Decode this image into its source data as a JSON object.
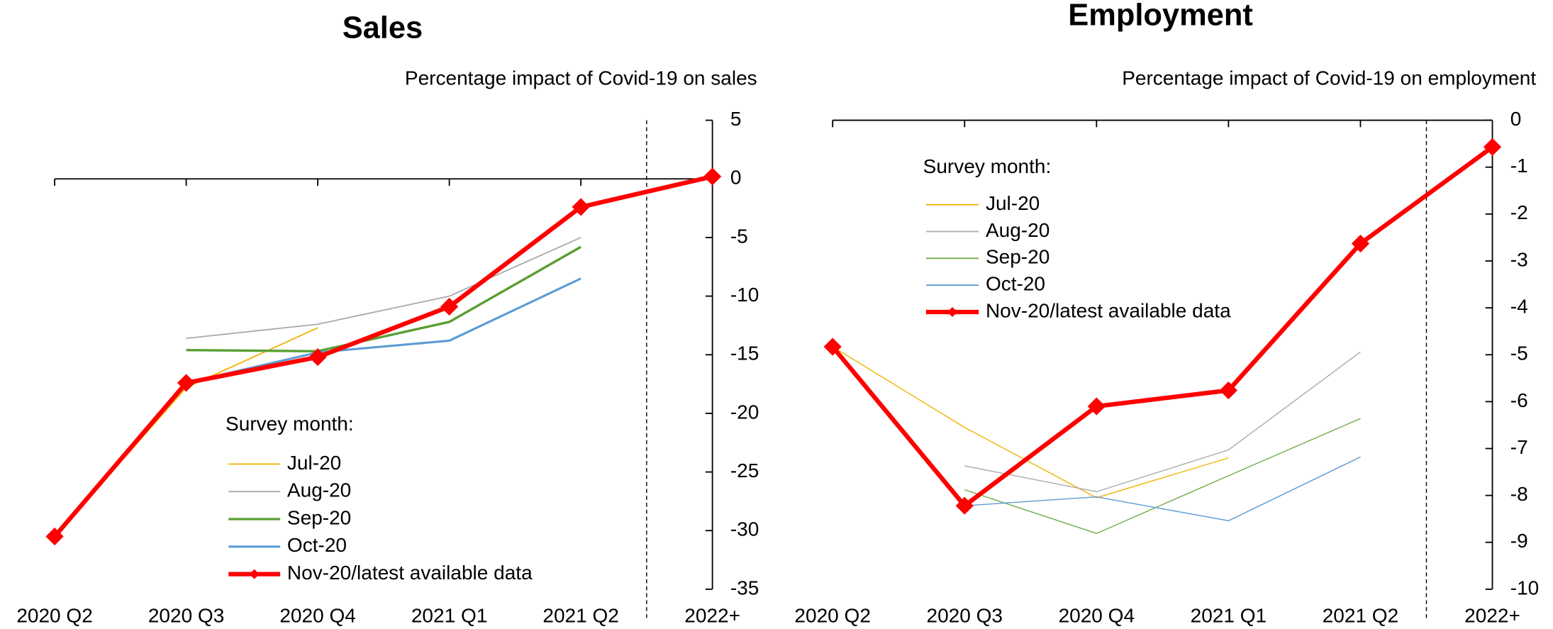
{
  "chart_data": [
    {
      "type": "line",
      "title": "Sales",
      "subtitle": "Percentage impact of Covid-19 on sales",
      "legend_title": "Survey month:",
      "categories": [
        "2020 Q2",
        "2020 Q3",
        "2020 Q4",
        "2021 Q1",
        "2021 Q2",
        "2022+"
      ],
      "series": [
        {
          "name": "Jul-20",
          "color": "#f0b400",
          "values": [
            -30.5,
            -17.8,
            -12.7,
            null,
            null,
            null
          ]
        },
        {
          "name": "Aug-20",
          "color": "#aaaaaa",
          "values": [
            null,
            -13.6,
            -12.4,
            -10,
            -5,
            null
          ]
        },
        {
          "name": "Sep-20",
          "color": "#5a9e32",
          "values": [
            null,
            -14.6,
            -14.7,
            -12.2,
            -5.8,
            null
          ]
        },
        {
          "name": "Oct-20",
          "color": "#5b9bd5",
          "values": [
            null,
            -17.4,
            -14.8,
            -13.8,
            -8.5,
            null
          ]
        },
        {
          "name": "Nov-20/latest available data",
          "color": "#ff0000",
          "values": [
            -30.5,
            -17.4,
            -15.2,
            -10.9,
            -2.4,
            0.2
          ]
        }
      ],
      "ylim": [
        -35,
        5
      ],
      "yticks": [
        5,
        0,
        -5,
        -10,
        -15,
        -20,
        -25,
        -30,
        -35
      ]
    },
    {
      "type": "line",
      "title": "Employment",
      "subtitle": "Percentage impact of Covid-19 on employment",
      "legend_title": "Survey month:",
      "categories": [
        "2020 Q2",
        "2020 Q3",
        "2020 Q4",
        "2021 Q1",
        "2021 Q2",
        "2022+"
      ],
      "series": [
        {
          "name": "Jul-20",
          "color": "#f0b400",
          "values": [
            -4.83,
            -6.55,
            -8.05,
            -7.2,
            null,
            null
          ]
        },
        {
          "name": "Aug-20",
          "color": "#aaaaaa",
          "values": [
            null,
            -7.37,
            -7.92,
            -7.03,
            -4.94,
            null
          ]
        },
        {
          "name": "Sep-20",
          "color": "#70ad47",
          "values": [
            null,
            -7.88,
            -8.81,
            -7.58,
            -6.36,
            null
          ]
        },
        {
          "name": "Oct-20",
          "color": "#5b9bd5",
          "values": [
            null,
            -8.22,
            -8.03,
            -8.54,
            -7.18,
            null
          ]
        },
        {
          "name": "Nov-20/latest available data",
          "color": "#ff0000",
          "values": [
            -4.83,
            -8.22,
            -6.1,
            -5.76,
            -2.63,
            -0.57
          ]
        }
      ],
      "ylim": [
        -10,
        0
      ],
      "yticks": [
        0,
        -1,
        -2,
        -3,
        -4,
        -5,
        -6,
        -7,
        -8,
        -9,
        -10
      ]
    }
  ]
}
